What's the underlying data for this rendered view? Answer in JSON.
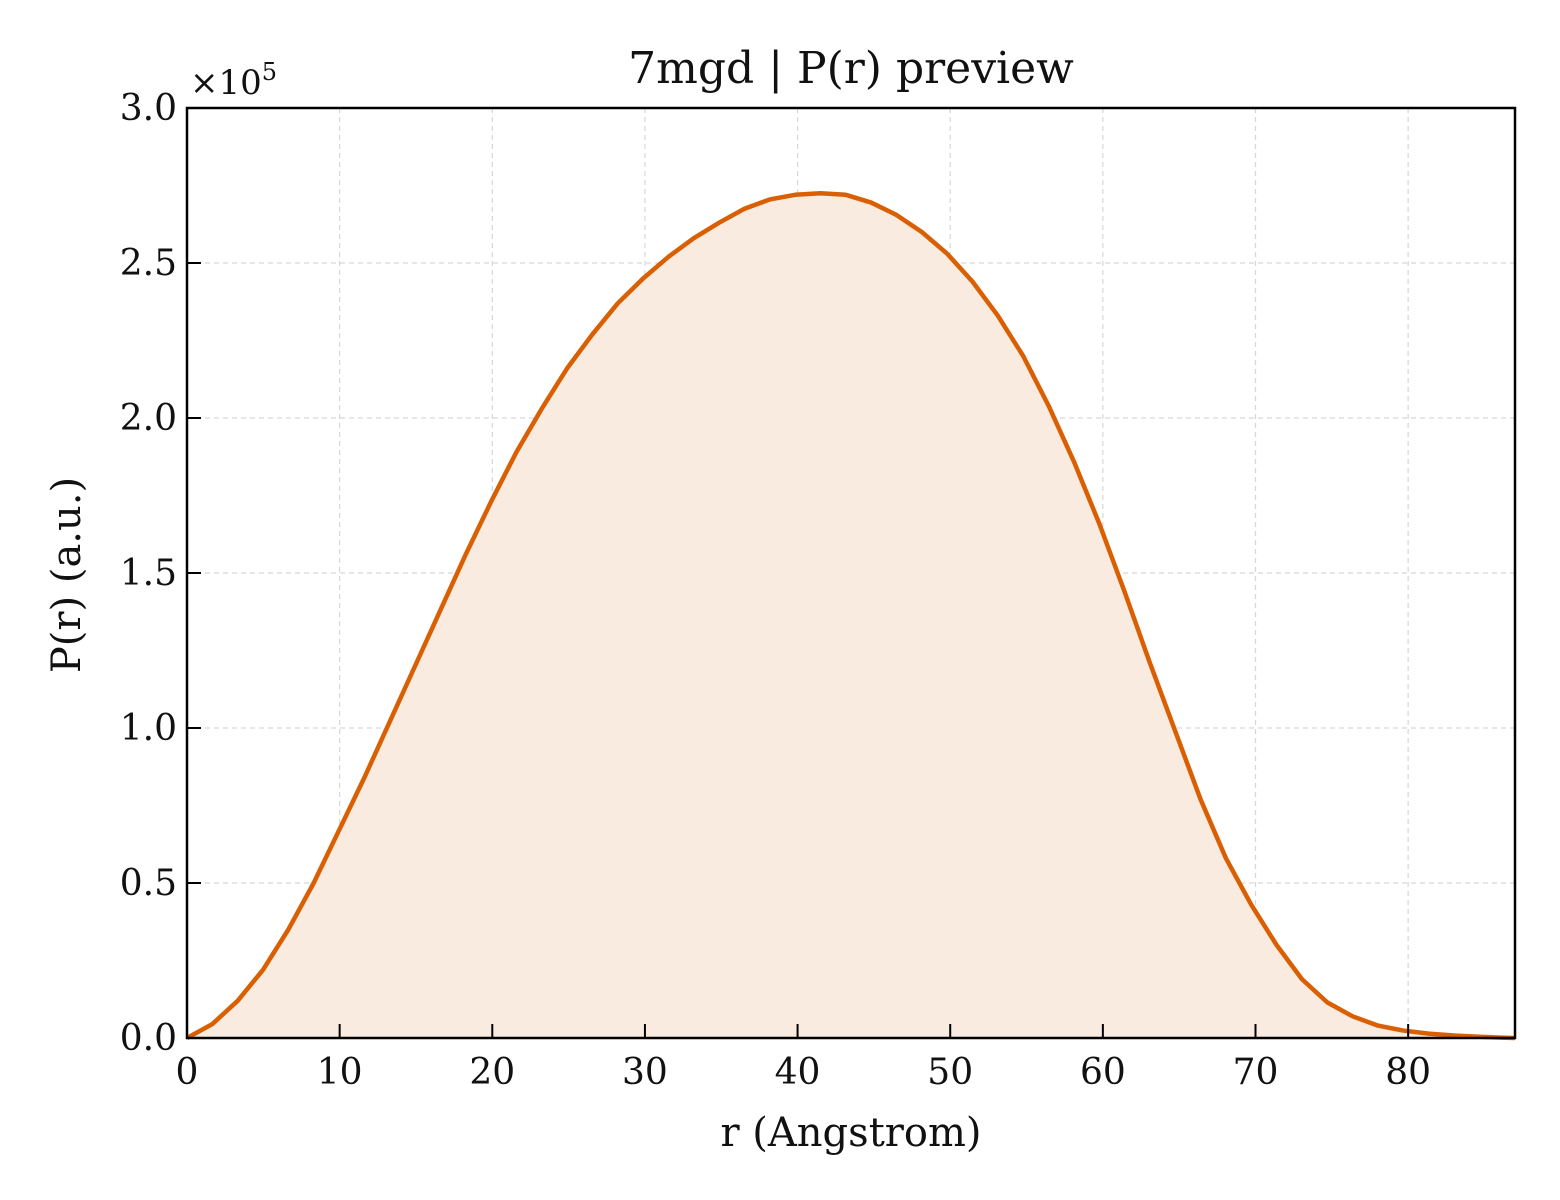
{
  "chart_data": {
    "type": "area",
    "title": "7mgd | P(r) preview",
    "xlabel": "r (Angstrom)",
    "ylabel": "P(r) (a.u.)",
    "y_multiplier_label": "×10",
    "y_multiplier_exponent": "5",
    "xlim": [
      0,
      87
    ],
    "ylim": [
      0,
      3.0
    ],
    "x_ticks": [
      0,
      10,
      20,
      30,
      40,
      50,
      60,
      70,
      80
    ],
    "x_tick_labels": [
      "0",
      "10",
      "20",
      "30",
      "40",
      "50",
      "60",
      "70",
      "80"
    ],
    "y_ticks": [
      0,
      0.5,
      1.0,
      1.5,
      2.0,
      2.5,
      3.0
    ],
    "y_tick_labels": [
      "0.0",
      "0.5",
      "1.0",
      "1.5",
      "2.0",
      "2.5",
      "3.0"
    ],
    "grid": true,
    "colors": {
      "line": "#d95f02",
      "fill": "#f9ebe0",
      "grid": "#d6d6d6"
    },
    "series": [
      {
        "x": [
          0,
          1.66,
          3.32,
          4.98,
          6.64,
          8.3,
          9.96,
          11.62,
          13.28,
          14.94,
          16.6,
          18.26,
          19.92,
          21.58,
          23.24,
          24.9,
          26.56,
          28.22,
          29.88,
          31.54,
          33.2,
          34.86,
          36.52,
          38.18,
          39.84,
          41.5,
          43.16,
          44.82,
          46.48,
          48.14,
          49.8,
          51.46,
          53.12,
          54.78,
          56.44,
          58.1,
          59.76,
          61.42,
          63.08,
          64.74,
          66.4,
          68.06,
          69.72,
          71.38,
          73.04,
          74.7,
          76.36,
          78.02,
          79.68,
          81.34,
          83.0,
          84.66,
          86.32,
          87.0
        ],
        "y": [
          0.0,
          0.045,
          0.12,
          0.22,
          0.35,
          0.5,
          0.67,
          0.84,
          1.02,
          1.2,
          1.38,
          1.56,
          1.73,
          1.89,
          2.03,
          2.16,
          2.27,
          2.37,
          2.45,
          2.52,
          2.58,
          2.63,
          2.675,
          2.705,
          2.72,
          2.725,
          2.72,
          2.695,
          2.655,
          2.6,
          2.53,
          2.44,
          2.33,
          2.2,
          2.04,
          1.86,
          1.66,
          1.44,
          1.21,
          0.99,
          0.77,
          0.58,
          0.43,
          0.3,
          0.19,
          0.115,
          0.07,
          0.04,
          0.024,
          0.014,
          0.008,
          0.004,
          0.001,
          0.0
        ]
      }
    ]
  }
}
